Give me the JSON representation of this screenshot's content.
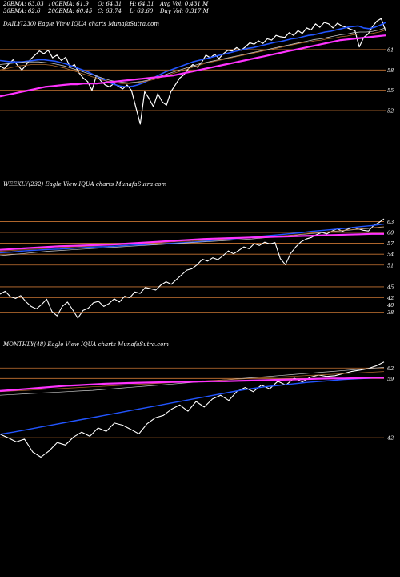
{
  "header": {
    "row1": [
      {
        "key": "ema20",
        "text": "20EMA: 63.03"
      },
      {
        "key": "ema100",
        "text": "100EMA: 61.9"
      },
      {
        "key": "open",
        "text": "O: 64.31"
      },
      {
        "key": "high",
        "text": "H: 64.31"
      },
      {
        "key": "avgvol",
        "text": "Avg Vol: 0.431 M"
      }
    ],
    "row2": [
      {
        "key": "ema30",
        "text": "30EMA: 62.6"
      },
      {
        "key": "ema200",
        "text": "200EMA: 60.45"
      },
      {
        "key": "close",
        "text": "C: 63.74"
      },
      {
        "key": "low",
        "text": "L: 63.60"
      },
      {
        "key": "dayvol",
        "text": "Day Vol: 0.317 M"
      }
    ]
  },
  "colors": {
    "background": "#000000",
    "price": "#ffffff",
    "ema_fast": "#2255ff",
    "ema_slow": "#ff33ff",
    "ema_mid": "#c8c8c8",
    "ema_brown": "#b06a2a",
    "level_line": "#c87533"
  },
  "chart_data": [
    {
      "type": "line",
      "title": "DAILY(230) Eagle  View  IQUA charts MunafaSutra.com",
      "levels": [
        "61",
        "58",
        "55",
        "52"
      ],
      "level_values": [
        61,
        58,
        55,
        52
      ],
      "ylim": [
        49.4,
        66.2
      ],
      "series": [
        {
          "role": "price",
          "color": "#ffffff",
          "width": 1.2,
          "values": [
            58.6,
            58.2,
            58.9,
            59.5,
            58.7,
            58.0,
            58.8,
            59.6,
            60.2,
            60.8,
            60.4,
            60.9,
            59.8,
            60.2,
            59.4,
            59.9,
            58.4,
            58.8,
            57.6,
            56.8,
            56.3,
            55.0,
            57.2,
            56.4,
            55.8,
            55.5,
            56.0,
            55.6,
            55.2,
            55.8,
            55.0,
            52.5,
            50.0,
            54.8,
            53.8,
            52.6,
            54.5,
            53.3,
            52.8,
            54.8,
            55.8,
            56.8,
            57.3,
            58.2,
            58.8,
            58.4,
            59.1,
            60.2,
            59.8,
            60.3,
            59.7,
            60.4,
            60.9,
            60.8,
            61.3,
            60.9,
            61.4,
            62.0,
            61.8,
            62.3,
            61.9,
            62.6,
            62.4,
            63.1,
            62.9,
            62.8,
            63.5,
            63.1,
            63.8,
            63.4,
            64.2,
            63.9,
            64.8,
            64.3,
            65.0,
            64.8,
            64.2,
            64.9,
            64.5,
            64.3,
            64.0,
            63.8,
            61.4,
            62.8,
            63.3,
            64.4,
            65.2,
            65.6,
            63.74
          ]
        },
        {
          "role": "ema-fast",
          "color": "#2255ff",
          "width": 1.6,
          "values": [
            59.4,
            59.3,
            59.2,
            59.2,
            59.2,
            59.3,
            59.4,
            59.5,
            59.5,
            59.4,
            59.3,
            59.1,
            58.9,
            58.6,
            58.3,
            58.0,
            57.7,
            57.3,
            56.9,
            56.5,
            56.1,
            55.8,
            55.6,
            55.5,
            55.6,
            55.8,
            56.1,
            56.5,
            56.9,
            57.3,
            57.7,
            58.0,
            58.3,
            58.6,
            58.9,
            59.2,
            59.4,
            59.6,
            59.8,
            60.0,
            60.2,
            60.4,
            60.6,
            60.8,
            61.0,
            61.2,
            61.3,
            61.5,
            61.7,
            61.9,
            62.1,
            62.2,
            62.4,
            62.6,
            62.7,
            62.9,
            63.1,
            63.2,
            63.4,
            63.6,
            63.7,
            63.9,
            64.1,
            64.3,
            64.4,
            64.5,
            64.2,
            64.1,
            64.3,
            64.6,
            65.0
          ]
        },
        {
          "role": "ema-mid",
          "color": "#c8c8c8",
          "width": 0.8,
          "values": [
            58.8,
            58.9,
            59.0,
            59.1,
            59.2,
            59.2,
            59.2,
            59.1,
            59.0,
            58.8,
            58.6,
            58.3,
            58.0,
            57.7,
            57.4,
            57.1,
            56.8,
            56.5,
            56.3,
            56.2,
            56.1,
            56.2,
            56.3,
            56.5,
            56.8,
            57.1,
            57.4,
            57.7,
            58.0,
            58.3,
            58.6,
            58.9,
            59.1,
            59.3,
            59.5,
            59.7,
            59.9,
            60.1,
            60.3,
            60.5,
            60.7,
            60.9,
            61.1,
            61.3,
            61.5,
            61.7,
            61.9,
            62.1,
            62.3,
            62.5,
            62.6,
            62.8,
            63.0,
            63.2,
            63.3,
            63.5,
            63.6,
            63.6,
            63.7,
            63.9,
            64.2
          ]
        },
        {
          "role": "ema-brown",
          "color": "#b06a2a",
          "width": 0.8,
          "values": [
            58.0,
            58.2,
            58.4,
            58.6,
            58.7,
            58.8,
            58.8,
            58.8,
            58.7,
            58.5,
            58.3,
            58.0,
            57.7,
            57.4,
            57.1,
            56.8,
            56.5,
            56.3,
            56.1,
            56.0,
            56.0,
            56.1,
            56.2,
            56.4,
            56.6,
            56.9,
            57.2,
            57.5,
            57.8,
            58.1,
            58.4,
            58.7,
            59.0,
            59.2,
            59.4,
            59.6,
            59.8,
            60.0,
            60.2,
            60.4,
            60.6,
            60.8,
            61.0,
            61.2,
            61.4,
            61.6,
            61.8,
            62.0,
            62.1,
            62.3,
            62.4,
            62.6,
            62.7,
            62.9,
            63.0,
            63.2,
            63.3,
            63.3,
            63.4,
            63.6,
            63.9
          ]
        },
        {
          "role": "ema-slow",
          "color": "#ff33ff",
          "width": 2.2,
          "values": [
            54.1,
            54.3,
            54.5,
            54.7,
            54.9,
            55.1,
            55.3,
            55.5,
            55.6,
            55.7,
            55.8,
            55.9,
            55.9,
            56.0,
            56.0,
            56.0,
            56.1,
            56.2,
            56.3,
            56.4,
            56.5,
            56.6,
            56.7,
            56.8,
            56.9,
            57.0,
            57.1,
            57.2,
            57.4,
            57.6,
            57.8,
            58.0,
            58.2,
            58.4,
            58.6,
            58.8,
            59.0,
            59.2,
            59.4,
            59.6,
            59.8,
            60.0,
            60.2,
            60.4,
            60.6,
            60.8,
            61.0,
            61.2,
            61.4,
            61.6,
            61.8,
            62.0,
            62.2,
            62.4,
            62.5,
            62.6,
            62.7,
            62.8,
            62.9,
            63.0,
            63.1
          ]
        }
      ]
    },
    {
      "type": "line",
      "title": "WEEKLY(232) Eagle  View  IQUA charts MunafaSutra.com",
      "levels": [
        "63",
        "60",
        "57",
        "54",
        "51",
        "45",
        "42",
        "40",
        "38"
      ],
      "level_values": [
        63,
        60,
        57,
        54,
        51,
        45,
        42,
        40,
        38
      ],
      "ylim": [
        33.5,
        75.9
      ],
      "series": [
        {
          "role": "price",
          "color": "#ffffff",
          "width": 1.1,
          "values": [
            43.0,
            43.8,
            42.3,
            41.8,
            42.6,
            40.9,
            39.6,
            38.9,
            40.1,
            41.6,
            38.2,
            37.0,
            39.6,
            40.8,
            38.7,
            36.4,
            38.5,
            39.1,
            40.6,
            41.0,
            39.6,
            40.4,
            41.7,
            40.8,
            42.4,
            42.0,
            43.6,
            43.2,
            44.8,
            44.5,
            44.1,
            45.5,
            46.4,
            45.7,
            47.0,
            48.3,
            49.6,
            50.0,
            51.1,
            52.6,
            52.1,
            53.0,
            52.5,
            53.6,
            54.9,
            54.1,
            55.0,
            56.0,
            55.5,
            56.9,
            56.4,
            57.3,
            56.8,
            57.2,
            52.8,
            51.1,
            54.2,
            56.0,
            57.4,
            58.2,
            58.6,
            59.4,
            60.0,
            59.6,
            60.4,
            61.0,
            60.3,
            60.9,
            61.4,
            61.0,
            60.6,
            60.4,
            61.9,
            62.7,
            63.74
          ]
        },
        {
          "role": "ema-fast",
          "color": "#2255ff",
          "width": 1.4,
          "values": [
            54.4,
            54.6,
            54.9,
            55.1,
            55.3,
            55.4,
            55.6,
            55.8,
            56.0,
            56.1,
            56.3,
            56.5,
            56.6,
            56.7,
            56.9,
            57.1,
            57.3,
            57.6,
            57.9,
            58.1,
            58.4,
            58.7,
            59.0,
            59.3,
            59.6,
            59.9,
            60.3,
            60.6,
            60.9,
            61.2,
            61.6,
            61.9,
            62.3
          ]
        },
        {
          "role": "ema-mid",
          "color": "#c8c8c8",
          "width": 0.7,
          "values": [
            53.6,
            53.9,
            54.2,
            54.5,
            54.8,
            55.0,
            55.2,
            55.4,
            55.6,
            55.8,
            56.0,
            56.2,
            56.4,
            56.6,
            56.8,
            57.0,
            57.2,
            57.4,
            57.6,
            57.8,
            58.0,
            58.2,
            58.5,
            58.8,
            59.1,
            59.4,
            59.7,
            60.0,
            60.3,
            60.6,
            60.9,
            61.2,
            61.5
          ]
        },
        {
          "role": "ema-brown",
          "color": "#b06a2a",
          "width": 0.7,
          "values": [
            54.8,
            55.0,
            55.2,
            55.4,
            55.6,
            55.8,
            56.0,
            56.1,
            56.3,
            56.5,
            56.6,
            56.8,
            57.0,
            57.1,
            57.3,
            57.5,
            57.6,
            57.8,
            58.0,
            58.2,
            58.4,
            58.6,
            58.8,
            59.0,
            59.2,
            59.5,
            59.8,
            60.1,
            60.4,
            60.7,
            61.0,
            61.3,
            61.6
          ]
        },
        {
          "role": "ema-slow",
          "color": "#ff33ff",
          "width": 2.2,
          "values": [
            55.2,
            55.4,
            55.6,
            55.8,
            56.0,
            56.2,
            56.3,
            56.4,
            56.5,
            56.6,
            56.8,
            57.0,
            57.2,
            57.4,
            57.6,
            57.8,
            58.0,
            58.2,
            58.3,
            58.4,
            58.5,
            58.6,
            58.7,
            58.8,
            58.9,
            59.0,
            59.1,
            59.2,
            59.3,
            59.4,
            59.5,
            59.6,
            59.6
          ]
        }
      ]
    },
    {
      "type": "line",
      "title": "MONTHLY(48) Eagle  View  IQUA charts MunafaSutra.com",
      "levels": [
        "62",
        "59",
        "42"
      ],
      "level_values": [
        62,
        59,
        42
      ],
      "ylim": [
        25.0,
        71.5
      ],
      "series": [
        {
          "role": "price",
          "color": "#ffffff",
          "width": 1.1,
          "values": [
            43.0,
            42.0,
            40.8,
            41.6,
            37.9,
            36.4,
            38.2,
            40.6,
            39.9,
            42.2,
            43.6,
            42.4,
            44.8,
            43.8,
            46.2,
            45.6,
            44.4,
            43.1,
            46.0,
            47.7,
            48.4,
            50.2,
            51.4,
            49.6,
            52.4,
            50.8,
            53.1,
            54.2,
            52.7,
            55.3,
            56.4,
            55.2,
            57.1,
            56.0,
            58.2,
            57.1,
            59.1,
            58.0,
            59.4,
            60.0,
            59.6,
            59.8,
            60.4,
            61.0,
            61.4,
            61.8,
            62.6,
            63.74
          ]
        },
        {
          "role": "ema-fast",
          "color": "#2255ff",
          "width": 1.4,
          "values": [
            43.0,
            43.6,
            44.3,
            45.0,
            45.7,
            46.4,
            47.1,
            47.8,
            48.5,
            49.2,
            49.9,
            50.6,
            51.3,
            52.0,
            52.7,
            53.4,
            54.1,
            54.8,
            55.5,
            56.1,
            56.6,
            57.0,
            57.4,
            57.8,
            58.1,
            58.4,
            58.7,
            58.9,
            59.1,
            59.3
          ]
        },
        {
          "role": "ema-mid",
          "color": "#c8c8c8",
          "width": 0.7,
          "values": [
            54.2,
            54.4,
            54.6,
            54.8,
            55.0,
            55.2,
            55.4,
            55.6,
            55.9,
            56.2,
            56.5,
            56.8,
            57.1,
            57.4,
            57.7,
            58.0,
            58.3,
            58.6,
            58.9,
            59.2,
            59.5,
            59.8,
            60.1,
            60.4,
            60.7,
            61.0,
            61.3,
            61.6,
            61.9,
            62.2
          ]
        },
        {
          "role": "ema-brown",
          "color": "#b06a2a",
          "width": 0.7,
          "values": [
            55.2,
            55.4,
            55.6,
            55.8,
            56.0,
            56.2,
            56.4,
            56.6,
            56.8,
            57.0,
            57.2,
            57.4,
            57.6,
            57.8,
            58.0,
            58.2,
            58.4,
            58.6,
            58.8,
            59.0,
            59.2,
            59.4,
            59.6,
            59.8,
            60.0,
            60.2,
            60.4,
            60.6,
            60.8,
            61.0
          ]
        },
        {
          "role": "ema-slow",
          "color": "#ff33ff",
          "width": 2.2,
          "values": [
            55.4,
            55.7,
            56.0,
            56.3,
            56.6,
            56.9,
            57.1,
            57.3,
            57.5,
            57.6,
            57.7,
            57.8,
            57.9,
            58.0,
            58.0,
            58.1,
            58.2,
            58.2,
            58.3,
            58.4,
            58.5,
            58.6,
            58.7,
            58.8,
            58.9,
            59.0,
            59.0,
            59.1,
            59.2,
            59.2
          ]
        }
      ]
    }
  ]
}
